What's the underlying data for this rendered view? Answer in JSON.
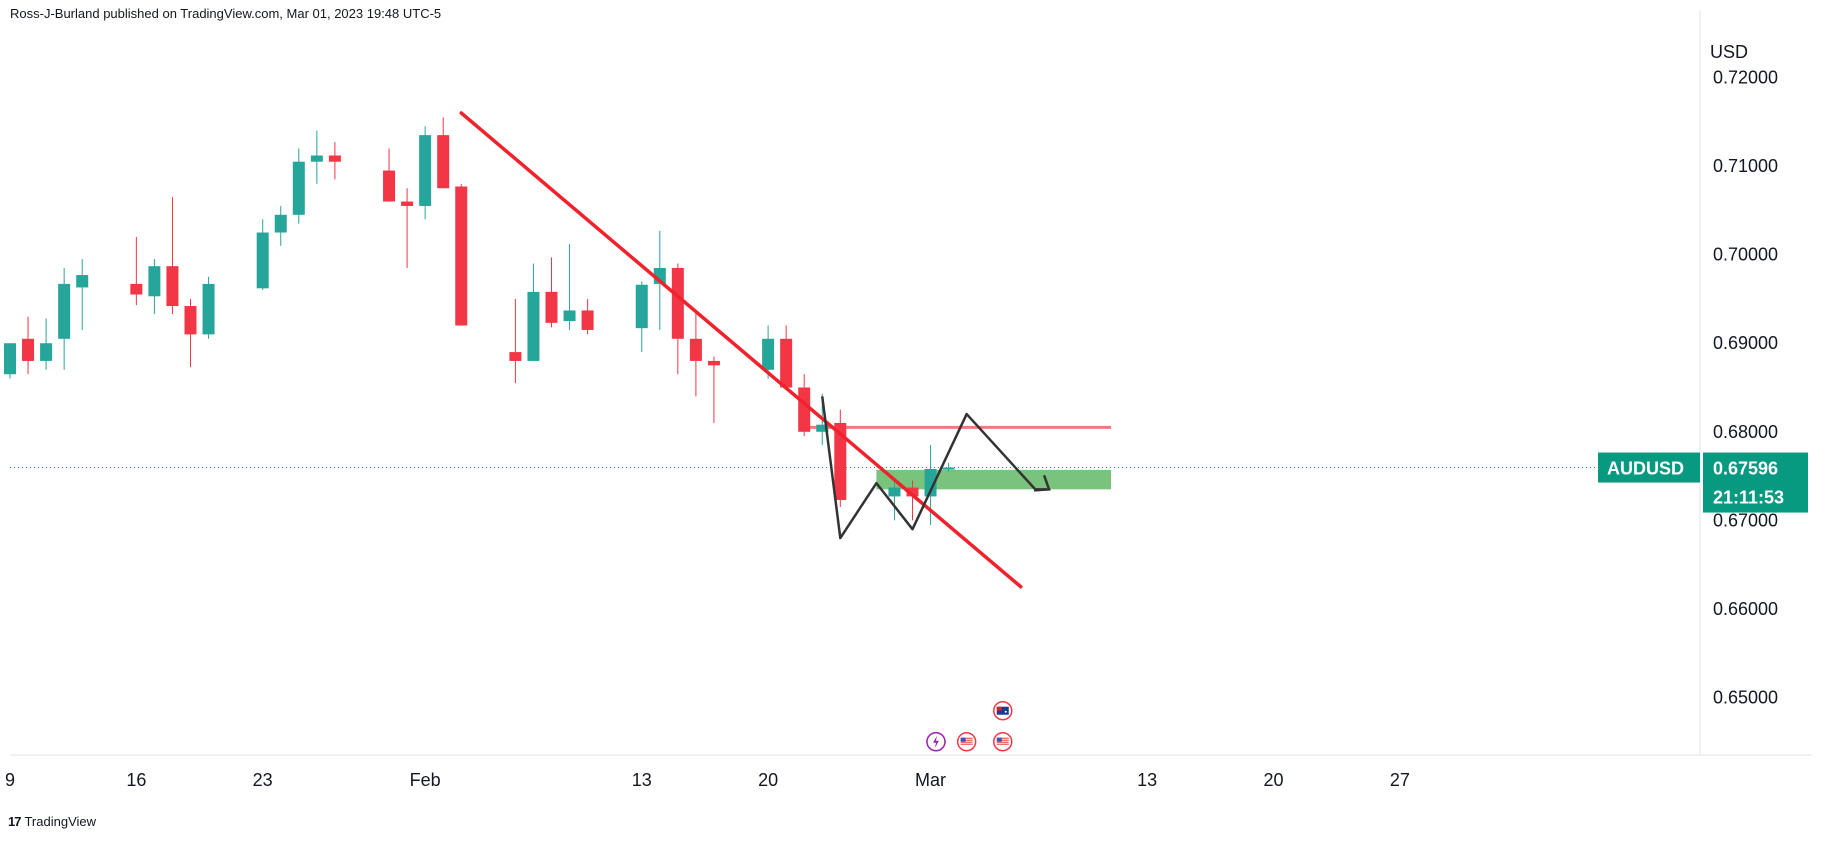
{
  "header": {
    "publisher_text": "Ross-J-Burland published on TradingView.com, Mar 01, 2023 19:48 UTC-5"
  },
  "footer": {
    "logo_icon": "tradingview-logo-icon",
    "brand": "TradingView"
  },
  "colors": {
    "up": "#26a69a",
    "down": "#f23645",
    "trendline": "#f0232d",
    "resistance": "#f07a80",
    "zone": "#4caf50",
    "path": "#333333",
    "badge": "#089981"
  },
  "chart_data": {
    "type": "candlestick",
    "symbol": "AUDUSD",
    "last_price": "0.67596",
    "countdown": "21:11:53",
    "currency_label": "USD",
    "y_ticks": [
      "0.72000",
      "0.71000",
      "0.70000",
      "0.69000",
      "0.68000",
      "0.67000",
      "0.66000",
      "0.65000"
    ],
    "ylim": [
      0.6435,
      0.7265
    ],
    "x_ticks": [
      {
        "label": "9",
        "day": 0
      },
      {
        "label": "16",
        "day": 7
      },
      {
        "label": "23",
        "day": 14
      },
      {
        "label": "Feb",
        "day": 23
      },
      {
        "label": "13",
        "day": 35
      },
      {
        "label": "20",
        "day": 42
      },
      {
        "label": "Mar",
        "day": 51
      },
      {
        "label": "13",
        "day": 63
      },
      {
        "label": "20",
        "day": 70
      },
      {
        "label": "27",
        "day": 77
      }
    ],
    "candles": [
      {
        "day": 0,
        "o": 0.6865,
        "h": 0.69,
        "l": 0.686,
        "c": 0.69
      },
      {
        "day": 1,
        "o": 0.6905,
        "h": 0.693,
        "l": 0.6865,
        "c": 0.688
      },
      {
        "day": 2,
        "o": 0.688,
        "h": 0.6928,
        "l": 0.687,
        "c": 0.69
      },
      {
        "day": 3,
        "o": 0.6905,
        "h": 0.6985,
        "l": 0.687,
        "c": 0.6967
      },
      {
        "day": 4,
        "o": 0.6963,
        "h": 0.6995,
        "l": 0.6915,
        "c": 0.6977
      },
      {
        "day": 7,
        "o": 0.6967,
        "h": 0.702,
        "l": 0.6943,
        "c": 0.6955
      },
      {
        "day": 8,
        "o": 0.6953,
        "h": 0.6995,
        "l": 0.6933,
        "c": 0.6987
      },
      {
        "day": 9,
        "o": 0.6987,
        "h": 0.7065,
        "l": 0.6933,
        "c": 0.6942
      },
      {
        "day": 10,
        "o": 0.6942,
        "h": 0.695,
        "l": 0.6873,
        "c": 0.691
      },
      {
        "day": 11,
        "o": 0.691,
        "h": 0.6975,
        "l": 0.6905,
        "c": 0.6967
      },
      {
        "day": 14,
        "o": 0.6962,
        "h": 0.704,
        "l": 0.696,
        "c": 0.7025
      },
      {
        "day": 15,
        "o": 0.7025,
        "h": 0.7055,
        "l": 0.701,
        "c": 0.7045
      },
      {
        "day": 16,
        "o": 0.7045,
        "h": 0.712,
        "l": 0.7035,
        "c": 0.7105
      },
      {
        "day": 17,
        "o": 0.7105,
        "h": 0.714,
        "l": 0.708,
        "c": 0.7112
      },
      {
        "day": 18,
        "o": 0.7112,
        "h": 0.7127,
        "l": 0.7085,
        "c": 0.7105
      },
      {
        "day": 21,
        "o": 0.7095,
        "h": 0.712,
        "l": 0.706,
        "c": 0.706
      },
      {
        "day": 22,
        "o": 0.706,
        "h": 0.7075,
        "l": 0.6985,
        "c": 0.7055
      },
      {
        "day": 23,
        "o": 0.7055,
        "h": 0.7145,
        "l": 0.704,
        "c": 0.7135
      },
      {
        "day": 24,
        "o": 0.7135,
        "h": 0.7155,
        "l": 0.7075,
        "c": 0.7075
      },
      {
        "day": 25,
        "o": 0.7077,
        "h": 0.708,
        "l": 0.692,
        "c": 0.692
      },
      {
        "day": 28,
        "o": 0.689,
        "h": 0.695,
        "l": 0.6855,
        "c": 0.688
      },
      {
        "day": 29,
        "o": 0.688,
        "h": 0.699,
        "l": 0.688,
        "c": 0.6958
      },
      {
        "day": 30,
        "o": 0.6958,
        "h": 0.6997,
        "l": 0.6918,
        "c": 0.6923
      },
      {
        "day": 31,
        "o": 0.6925,
        "h": 0.7012,
        "l": 0.6915,
        "c": 0.6937
      },
      {
        "day": 32,
        "o": 0.6937,
        "h": 0.695,
        "l": 0.691,
        "c": 0.6915
      },
      {
        "day": 35,
        "o": 0.6917,
        "h": 0.697,
        "l": 0.689,
        "c": 0.6966
      },
      {
        "day": 36,
        "o": 0.6967,
        "h": 0.7027,
        "l": 0.6915,
        "c": 0.6985
      },
      {
        "day": 37,
        "o": 0.6985,
        "h": 0.699,
        "l": 0.6865,
        "c": 0.6905
      },
      {
        "day": 38,
        "o": 0.6905,
        "h": 0.6935,
        "l": 0.684,
        "c": 0.688
      },
      {
        "day": 39,
        "o": 0.688,
        "h": 0.6885,
        "l": 0.681,
        "c": 0.6875
      },
      {
        "day": 42,
        "o": 0.687,
        "h": 0.692,
        "l": 0.686,
        "c": 0.6905
      },
      {
        "day": 43,
        "o": 0.6905,
        "h": 0.692,
        "l": 0.685,
        "c": 0.685
      },
      {
        "day": 44,
        "o": 0.685,
        "h": 0.6865,
        "l": 0.6795,
        "c": 0.68
      },
      {
        "day": 45,
        "o": 0.68,
        "h": 0.6843,
        "l": 0.6785,
        "c": 0.6808
      },
      {
        "day": 46,
        "o": 0.681,
        "h": 0.6825,
        "l": 0.6715,
        "c": 0.6723
      },
      {
        "day": 49,
        "o": 0.6727,
        "h": 0.6745,
        "l": 0.67,
        "c": 0.6737
      },
      {
        "day": 50,
        "o": 0.6737,
        "h": 0.6745,
        "l": 0.67,
        "c": 0.6727
      },
      {
        "day": 51,
        "o": 0.6727,
        "h": 0.6785,
        "l": 0.6695,
        "c": 0.6758
      },
      {
        "day": 52,
        "o": 0.6759,
        "h": 0.6765,
        "l": 0.6755,
        "c": 0.67596
      }
    ],
    "annotations": {
      "trendline": [
        [
          25,
          0.716
        ],
        [
          56,
          0.6625
        ]
      ],
      "resistance_line": {
        "y": 0.6805,
        "x0": 44.3,
        "x1": 61
      },
      "support_zone": {
        "y0": 0.6735,
        "y1": 0.6757,
        "x0": 48,
        "x1": 61
      },
      "projected_path": [
        [
          45,
          0.684
        ],
        [
          46,
          0.668
        ],
        [
          48,
          0.6742
        ],
        [
          50,
          0.669
        ],
        [
          53,
          0.682
        ],
        [
          56.8,
          0.6735
        ],
        [
          57.4,
          0.6735
        ]
      ],
      "event_icons": [
        {
          "day": 55,
          "y": 0.6485,
          "icon": "australia-flag-icon"
        },
        {
          "day": 53,
          "y": 0.645,
          "icon": "us-flag-icon"
        },
        {
          "day": 55,
          "y": 0.645,
          "icon": "us-flag-icon"
        },
        {
          "day": 51.3,
          "y": 0.645,
          "icon": "lightning-event-icon"
        }
      ]
    }
  }
}
